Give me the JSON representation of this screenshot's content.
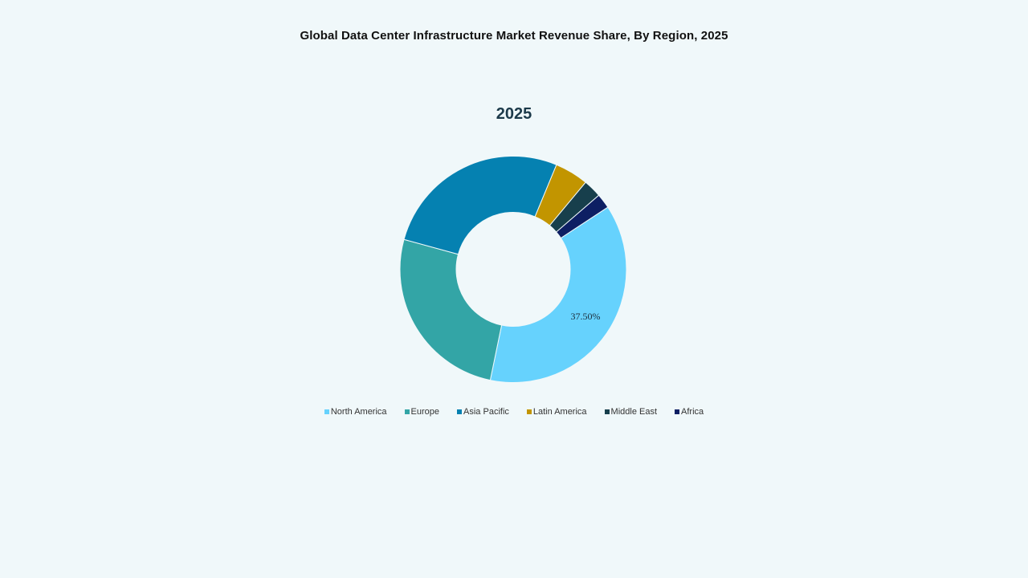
{
  "title": "Global Data Center Infrastructure  Market Revenue Share, By Region, 2025",
  "subtitle": "2025",
  "chart_data": {
    "type": "pie",
    "variant": "donut",
    "title": "Global Data Center Infrastructure Market Revenue Share, By Region, 2025",
    "subtitle": "2025",
    "categories": [
      "North America",
      "Europe",
      "Asia Pacific",
      "Latin America",
      "Middle East",
      "Africa"
    ],
    "values": [
      37.5,
      26.0,
      27.0,
      4.8,
      2.6,
      2.1
    ],
    "unit": "%",
    "colors": [
      "#66d2fd",
      "#33a5a6",
      "#0581b1",
      "#c29500",
      "#173f4c",
      "#0d1f63"
    ],
    "data_labels": [
      {
        "category": "North America",
        "text": "37.50%"
      }
    ],
    "start_angle_deg": 56.7,
    "direction": "clockwise",
    "legend_position": "bottom"
  },
  "legend": [
    {
      "label": "North America",
      "color": "#66d2fd"
    },
    {
      "label": "Europe",
      "color": "#33a5a6"
    },
    {
      "label": "Asia Pacific",
      "color": "#0581b1"
    },
    {
      "label": "Latin America",
      "color": "#c29500"
    },
    {
      "label": "Middle East",
      "color": "#173f4c"
    },
    {
      "label": "Africa",
      "color": "#0d1f63"
    }
  ]
}
